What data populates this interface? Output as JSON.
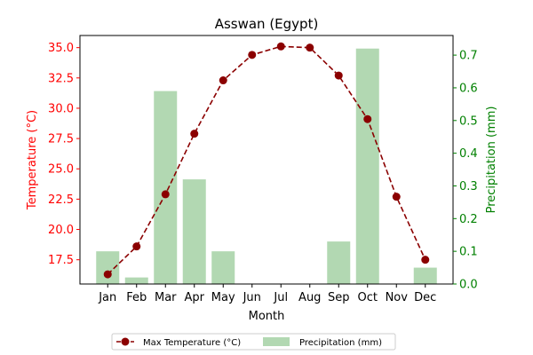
{
  "chart_data": {
    "type": "bar+line",
    "title": "Asswan (Egypt)",
    "xlabel": "Month",
    "ylabel_left": "Temperature (°C)",
    "ylabel_right": "Precipitation (mm)",
    "categories": [
      "Jan",
      "Feb",
      "Mar",
      "Apr",
      "May",
      "Jun",
      "Jul",
      "Aug",
      "Sep",
      "Oct",
      "Nov",
      "Dec"
    ],
    "series": [
      {
        "name": "Max Temperature (°C)",
        "type": "line",
        "axis": "left",
        "values": [
          16.3,
          18.6,
          22.9,
          27.9,
          32.3,
          34.4,
          35.1,
          35.0,
          32.7,
          29.1,
          22.7,
          17.5
        ]
      },
      {
        "name": "Precipitation (mm)",
        "type": "bar",
        "axis": "right",
        "values": [
          0.1,
          0.02,
          0.59,
          0.32,
          0.1,
          0.0,
          0.0,
          0.0,
          0.13,
          0.72,
          0.0,
          0.05
        ]
      }
    ],
    "left_ylim": [
      15.5,
      36.0
    ],
    "left_ticks": [
      "17.5",
      "20.0",
      "22.5",
      "25.0",
      "27.5",
      "30.0",
      "32.5",
      "35.0"
    ],
    "right_ylim": [
      0,
      0.76
    ],
    "right_ticks": [
      "0.0",
      "0.1",
      "0.2",
      "0.3",
      "0.4",
      "0.5",
      "0.6",
      "0.7"
    ],
    "colors": {
      "line": "#8b0000",
      "bars": "#b2d8b2",
      "left_axis": "#ff0000",
      "right_axis": "#008000"
    },
    "legend_position": "bottom-center",
    "grid": false
  }
}
